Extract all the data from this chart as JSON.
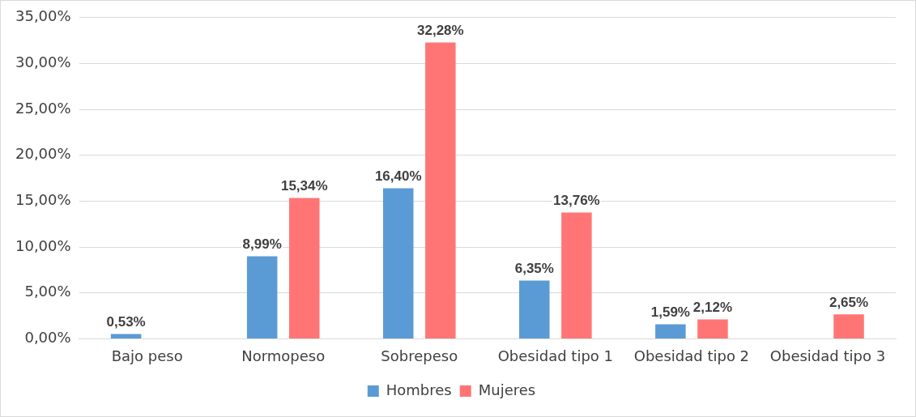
{
  "chart_data": {
    "type": "bar",
    "categories": [
      "Bajo peso",
      "Normopeso",
      "Sobrepeso",
      "Obesidad tipo 1",
      "Obesidad tipo 2",
      "Obesidad tipo 3"
    ],
    "series": [
      {
        "name": "Hombres",
        "color": "#5b9bd5",
        "values": [
          0.53,
          8.99,
          16.4,
          6.35,
          1.59,
          null
        ],
        "value_labels": [
          "0,53%",
          "8,99%",
          "16,40%",
          "6,35%",
          "1,59%",
          null
        ]
      },
      {
        "name": "Mujeres",
        "color": "#ff7575",
        "values": [
          null,
          15.34,
          32.28,
          13.76,
          2.12,
          2.65
        ],
        "value_labels": [
          null,
          "15,34%",
          "32,28%",
          "13,76%",
          "2,12%",
          "2,65%"
        ]
      }
    ],
    "ylim": [
      0,
      35
    ],
    "yticks": [
      {
        "value": 0,
        "label": "0,00%"
      },
      {
        "value": 5,
        "label": "5,00%"
      },
      {
        "value": 10,
        "label": "10,00%"
      },
      {
        "value": 15,
        "label": "15,00%"
      },
      {
        "value": 20,
        "label": "20,00%"
      },
      {
        "value": 25,
        "label": "25,00%"
      },
      {
        "value": 30,
        "label": "30,00%"
      },
      {
        "value": 35,
        "label": "35,00%"
      }
    ],
    "grid": "y",
    "legend": "bottom"
  }
}
